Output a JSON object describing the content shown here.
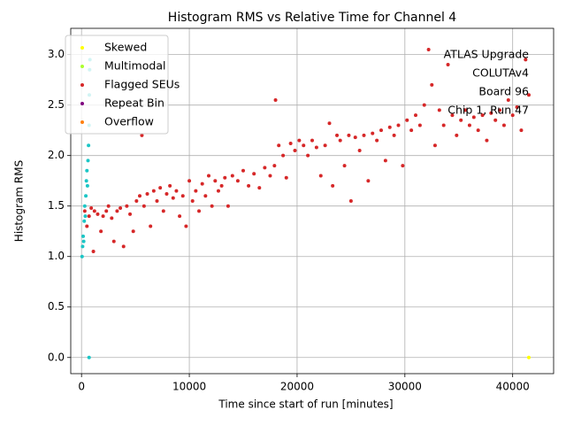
{
  "chart_data": {
    "type": "scatter",
    "title": "Histogram RMS vs Relative Time for Channel 4",
    "x_label": "Time since start of run [minutes]",
    "y_label": "Histogram RMS",
    "annotation": [
      "ATLAS Upgrade",
      "COLUTAv4",
      "Board 96",
      "Chip 1, Run 47"
    ],
    "xlim": [
      -1000,
      43800
    ],
    "ylim": [
      -0.16,
      3.26
    ],
    "xticks": [
      0,
      10000,
      20000,
      30000,
      40000
    ],
    "yticks": [
      {
        "value": 0,
        "label": "0.0"
      },
      0.5,
      {
        "value": 1,
        "label": "1.0"
      },
      1.5,
      {
        "value": 2,
        "label": "2.0"
      },
      2.5,
      {
        "value": 3,
        "label": "3.0"
      }
    ],
    "grid": true,
    "legend": "upper left",
    "series": [
      {
        "color": "#1cc6c6",
        "x": [
          50,
          100,
          150,
          200,
          250,
          300,
          350,
          400,
          450,
          500,
          550,
          600,
          650,
          700,
          720,
          750,
          780,
          700
        ],
        "values": [
          1.0,
          1.1,
          1.2,
          1.15,
          1.35,
          1.5,
          1.4,
          1.6,
          1.75,
          1.85,
          1.7,
          1.95,
          2.1,
          2.3,
          2.6,
          2.85,
          2.95,
          0.0
        ]
      },
      {
        "name": "Skewed",
        "color": "#ffff00",
        "x": [
          41500
        ],
        "values": [
          0.0
        ]
      },
      {
        "name": "Multimodal",
        "color": "#adff2f",
        "x": [],
        "values": []
      },
      {
        "name": "Flagged SEUs",
        "color": "#d62728",
        "x": [
          300,
          500,
          700,
          900,
          1100,
          1200,
          1500,
          1800,
          2000,
          2300,
          2500,
          2800,
          3000,
          3300,
          3600,
          3900,
          4200,
          4500,
          4800,
          5100,
          5400,
          5600,
          5800,
          6100,
          6400,
          6700,
          7000,
          7300,
          7600,
          7900,
          8200,
          8500,
          8800,
          9100,
          9400,
          9700,
          10000,
          10300,
          10600,
          10900,
          11200,
          11500,
          11800,
          12100,
          12400,
          12700,
          13000,
          13300,
          13600,
          14000,
          14500,
          15000,
          15500,
          16000,
          16500,
          17000,
          17500,
          17900,
          18000,
          18300,
          18700,
          19000,
          19400,
          19800,
          20200,
          20600,
          21000,
          21400,
          21800,
          22200,
          22600,
          23000,
          23300,
          23700,
          24000,
          24400,
          24800,
          25000,
          25400,
          25800,
          26200,
          26600,
          27000,
          27400,
          27800,
          28200,
          28600,
          29000,
          29400,
          29800,
          30200,
          30600,
          31000,
          31400,
          31800,
          32200,
          32500,
          32800,
          33200,
          33600,
          34000,
          34400,
          34800,
          35200,
          35600,
          36000,
          36400,
          36800,
          37200,
          37600,
          38000,
          38400,
          38800,
          39200,
          39600,
          40000,
          40400,
          40800,
          41200,
          41500
        ],
        "values": [
          1.45,
          1.3,
          1.4,
          1.48,
          1.05,
          1.45,
          1.42,
          1.25,
          1.4,
          1.45,
          1.5,
          1.38,
          1.15,
          1.45,
          1.48,
          1.1,
          1.5,
          1.42,
          1.25,
          1.55,
          1.6,
          2.2,
          1.5,
          1.62,
          1.3,
          1.65,
          1.55,
          1.68,
          1.45,
          1.62,
          1.7,
          1.58,
          1.65,
          1.4,
          1.6,
          1.3,
          1.75,
          1.55,
          1.65,
          1.45,
          1.72,
          1.6,
          1.8,
          1.5,
          1.75,
          1.65,
          1.7,
          1.78,
          1.5,
          1.8,
          1.75,
          1.85,
          1.7,
          1.82,
          1.68,
          1.88,
          1.8,
          1.9,
          2.55,
          2.1,
          2.0,
          1.78,
          2.12,
          2.05,
          2.15,
          2.1,
          2.0,
          2.15,
          2.08,
          1.8,
          2.1,
          2.32,
          1.7,
          2.2,
          2.15,
          1.9,
          2.2,
          1.55,
          2.18,
          2.05,
          2.2,
          1.75,
          2.22,
          2.15,
          2.25,
          1.95,
          2.28,
          2.2,
          2.3,
          1.9,
          2.35,
          2.25,
          2.4,
          2.3,
          2.5,
          3.05,
          2.7,
          2.1,
          2.45,
          2.3,
          2.9,
          2.4,
          2.2,
          2.35,
          2.45,
          2.3,
          2.38,
          2.25,
          2.4,
          2.15,
          2.42,
          2.35,
          2.45,
          2.3,
          2.55,
          2.4,
          2.48,
          2.25,
          2.95,
          2.6
        ]
      },
      {
        "name": "Repeat Bin",
        "color": "#800080",
        "x": [],
        "values": []
      },
      {
        "name": "Overflow",
        "color": "#ff7f0e",
        "x": [],
        "values": []
      }
    ]
  }
}
